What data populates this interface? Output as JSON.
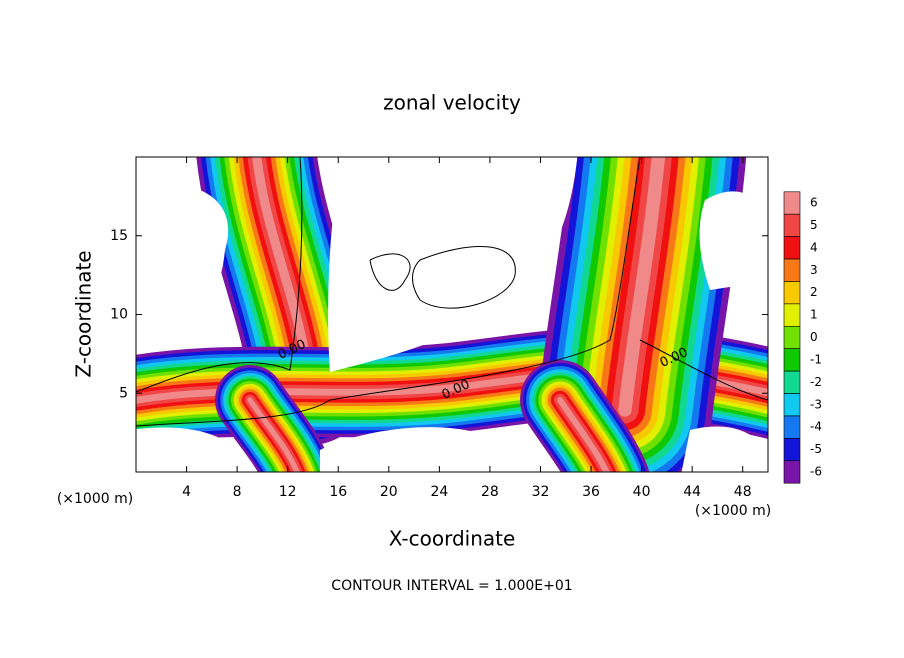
{
  "chart_data": {
    "type": "contour",
    "title": "zonal velocity",
    "x_label": "X-coordinate",
    "y_label": "Z-coordinate",
    "x_unit": "(×1000 m)",
    "y_unit": "(×1000 m)",
    "footer": "CONTOUR INTERVAL = 1.000E+01",
    "xlim": [
      0,
      50
    ],
    "xticks": [
      4,
      8,
      12,
      16,
      20,
      24,
      28,
      32,
      36,
      40,
      44,
      48
    ],
    "ylim": [
      0,
      20
    ],
    "yticks": [
      5,
      10,
      15
    ],
    "contour_labels": [
      "0.00",
      "0.00",
      "0.00"
    ],
    "colorbar": {
      "levels": [
        6,
        5,
        4,
        3,
        2,
        1,
        0,
        -1,
        -2,
        -3,
        -4,
        -5,
        -6
      ],
      "colors": [
        "#f08a8a",
        "#f04646",
        "#f01010",
        "#f87818",
        "#f8c800",
        "#e0f000",
        "#70e000",
        "#10c800",
        "#10d890",
        "#10c8f0",
        "#1478f0",
        "#1414d8",
        "#7814a8"
      ]
    }
  }
}
